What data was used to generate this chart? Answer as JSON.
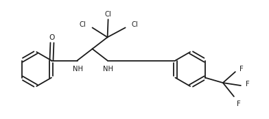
{
  "bg_color": "#ffffff",
  "line_color": "#1a1a1a",
  "line_width": 1.3,
  "font_size": 7.2,
  "figsize": [
    3.92,
    1.74
  ],
  "dpi": 100,
  "xlim": [
    0.0,
    7.8
  ],
  "ylim": [
    0.6,
    3.8
  ]
}
